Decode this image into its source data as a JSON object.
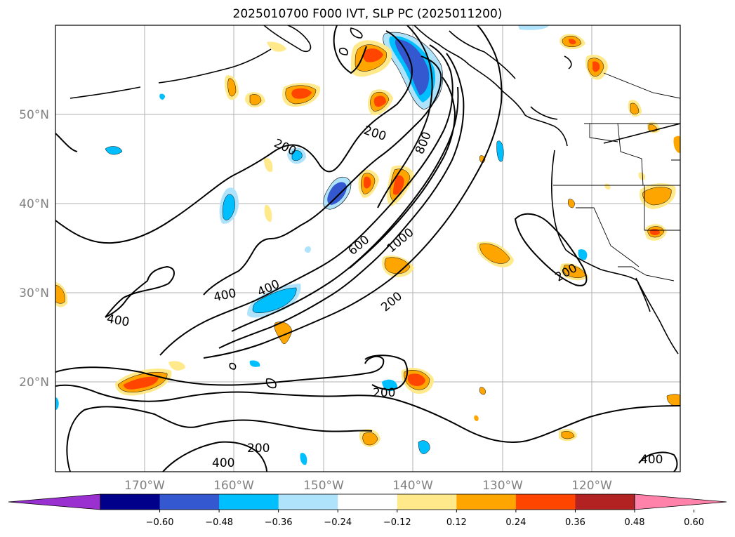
{
  "title": "2025010700 F000 IVT, SLP PC (2025011200)",
  "map": {
    "lon_ticks": [
      "170°W",
      "160°W",
      "150°W",
      "140°W",
      "130°W",
      "120°W"
    ],
    "lat_ticks": [
      "50°N",
      "40°N",
      "30°N",
      "20°N"
    ],
    "contour_labels": [
      "200",
      "200",
      "800",
      "400",
      "400",
      "400",
      "600",
      "1000",
      "200",
      "200",
      "200",
      "200",
      "400",
      "400"
    ]
  },
  "colorbar": {
    "ticks": [
      "−0.60",
      "−0.48",
      "−0.36",
      "−0.24",
      "−0.12",
      "0.12",
      "0.24",
      "0.36",
      "0.48",
      "0.60"
    ],
    "colors": {
      "below": "#9b30d0",
      "bins": [
        "#00008b",
        "#3458cf",
        "#00bfff",
        "#aee3fb",
        "#ffffff",
        "#ffe98a",
        "#ffa500",
        "#ff4500",
        "#b22222"
      ],
      "above": "#ff82ab"
    }
  }
}
